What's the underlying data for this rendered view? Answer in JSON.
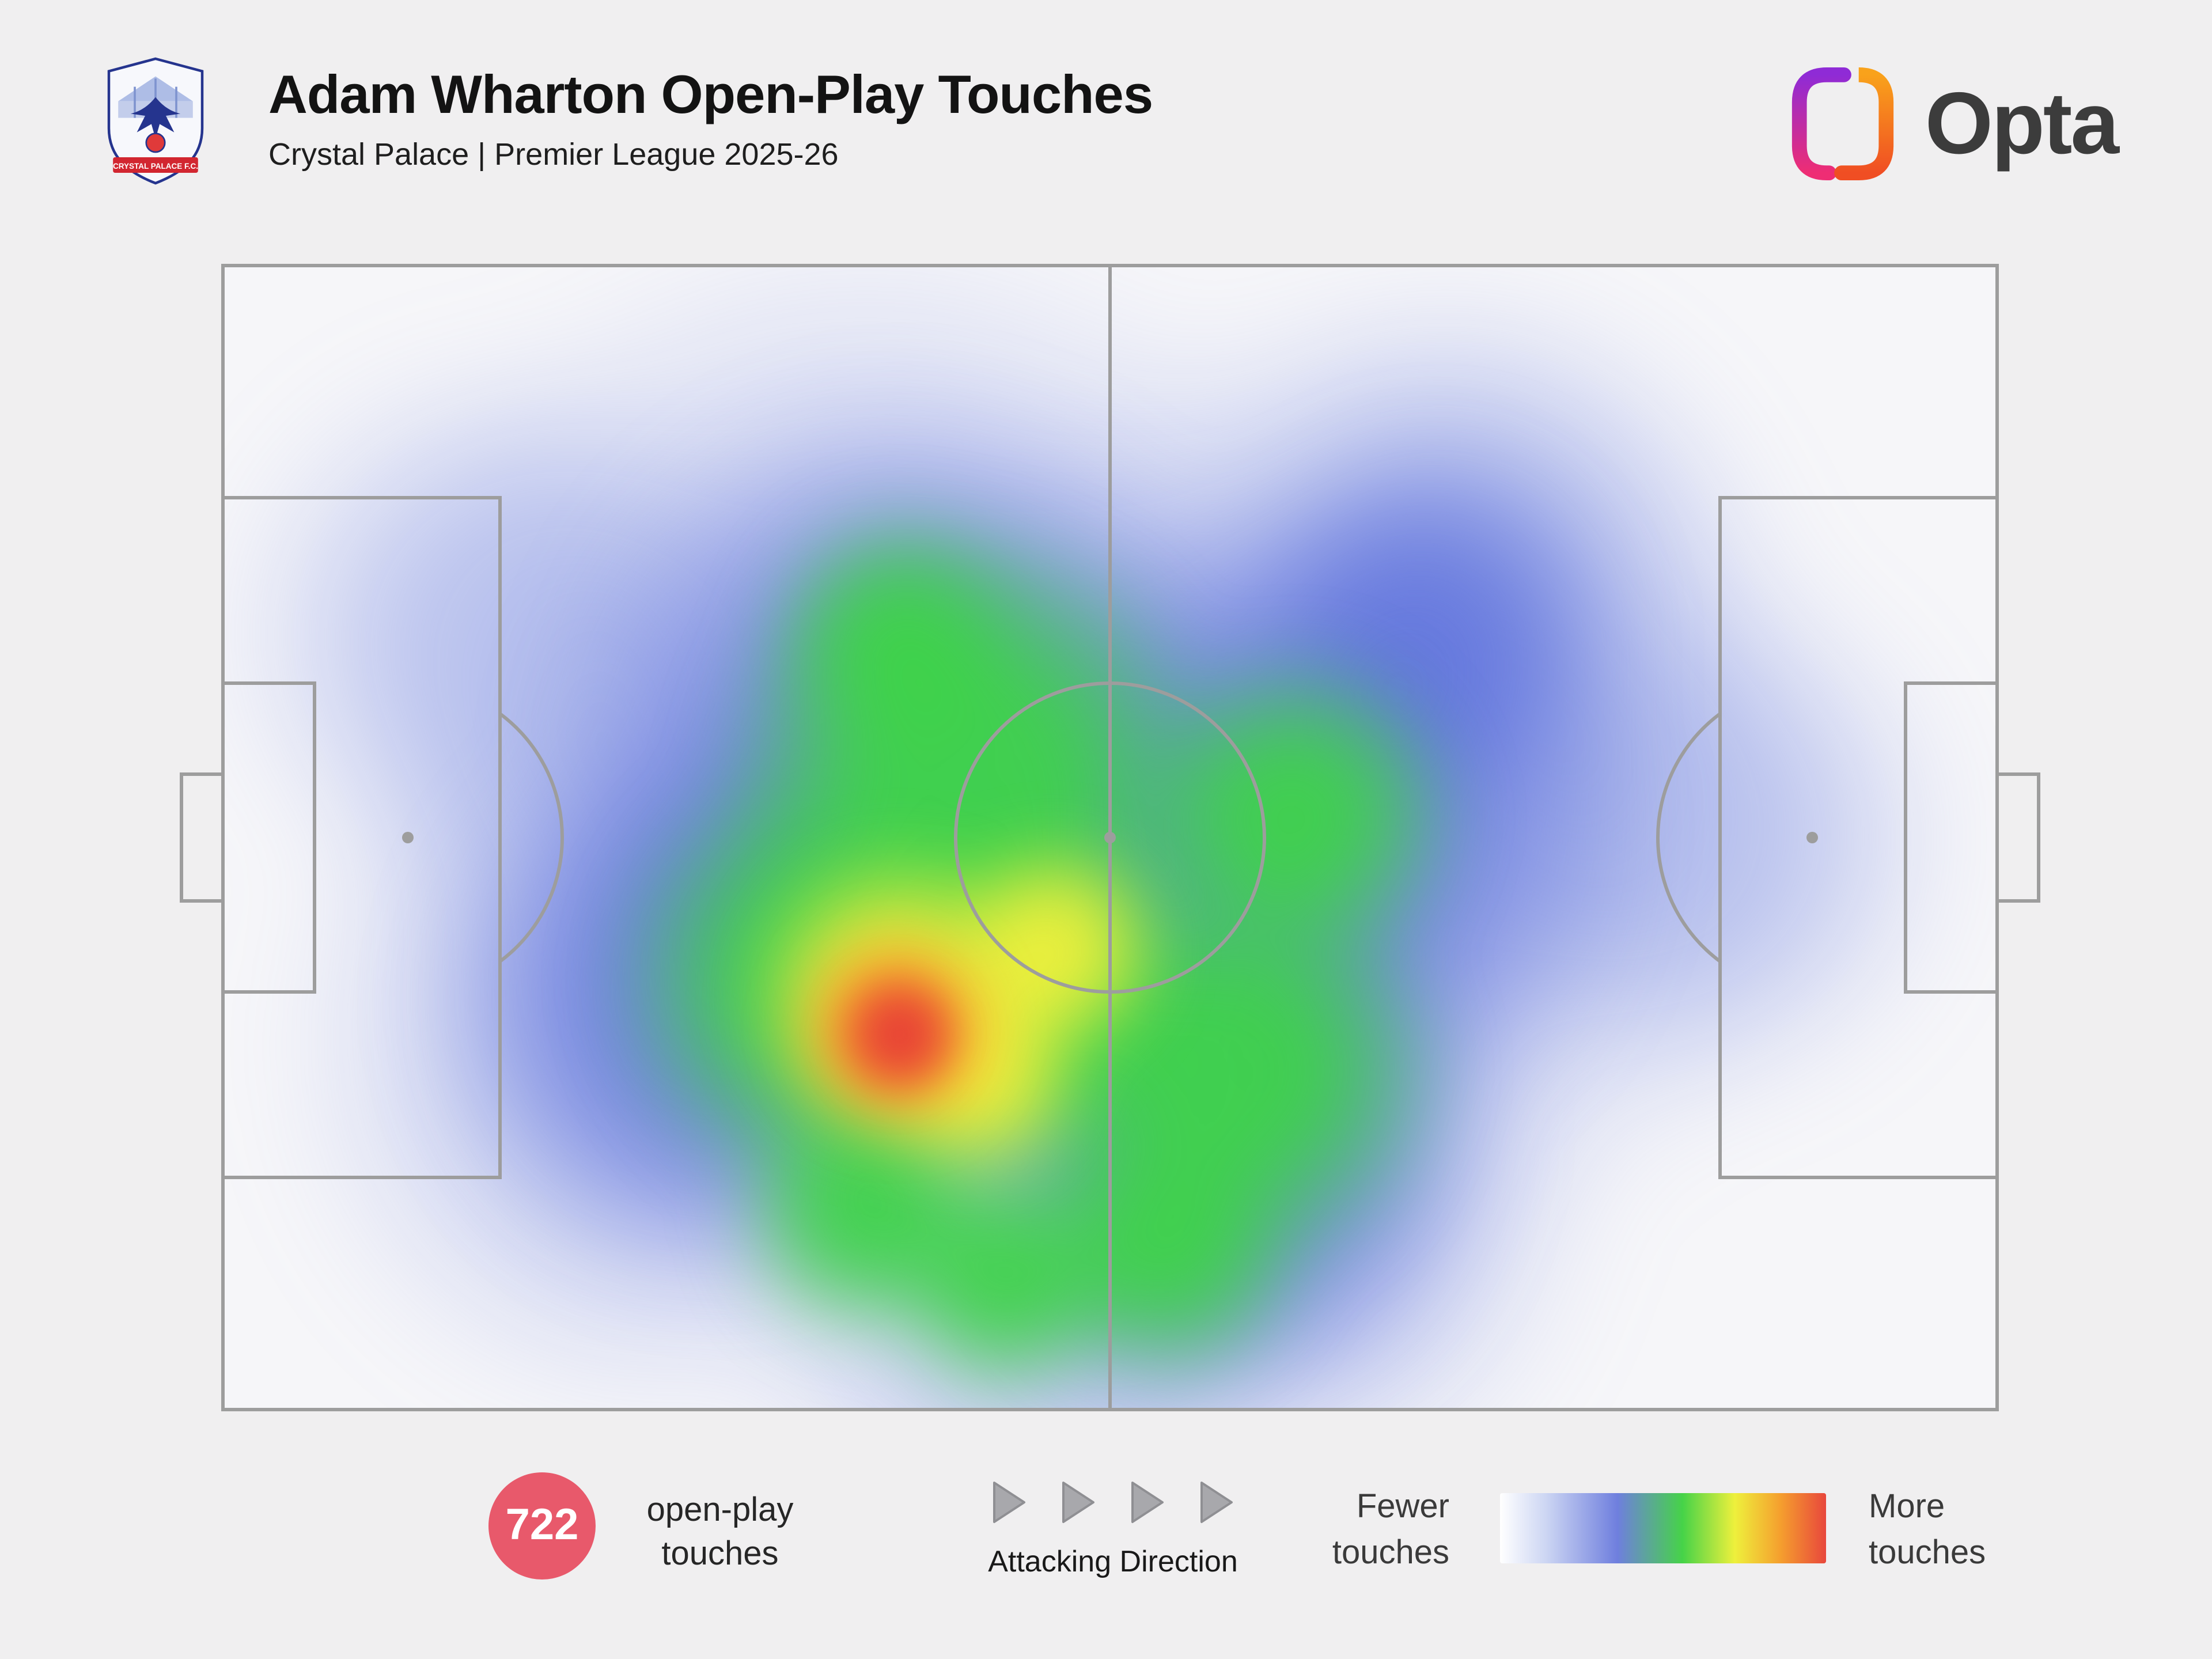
{
  "header": {
    "title": "Adam Wharton Open-Play Touches",
    "subtitle": "Crystal Palace | Premier League 2025-26",
    "brand": "Opta",
    "crest_banner": "CRYSTAL PALACE F.C."
  },
  "footer": {
    "touches_value": "722",
    "touches_label_line1": "open-play",
    "touches_label_line2": "touches",
    "attacking_direction": "Attacking Direction",
    "legend_low_line1": "Fewer",
    "legend_low_line2": "touches",
    "legend_high_line1": "More",
    "legend_high_line2": "touches"
  },
  "colors": {
    "background": "#f0eff0",
    "pitch_line": "#9d9d9d",
    "badge_red": "#e8596b",
    "opta_text": "#3c3c3c",
    "opta_gradient_left_top": "#8f2bd6",
    "opta_gradient_left_bottom": "#ee2d74",
    "opta_gradient_right_top": "#f9a21b",
    "opta_gradient_right_bottom": "#f04e23"
  },
  "chart_data": {
    "type": "heatmap",
    "title": "Adam Wharton Open-Play Touches",
    "subtitle": "Crystal Palace | Premier League 2025-26",
    "player": "Adam Wharton",
    "team": "Crystal Palace",
    "competition": "Premier League 2025-26",
    "total_open_play_touches": 722,
    "attacking_direction": "left-to-right",
    "legend": {
      "low_label": "Fewer touches",
      "high_label": "More touches"
    },
    "peak_zone": {
      "x_pct": 38,
      "y_pct": 67,
      "description": "deep left-centre midfield channel, just outside and left of the centre circle, own half"
    },
    "colormap": [
      {
        "color": "#ffffff",
        "pos": 0
      },
      {
        "color": "#cdd6f3",
        "pos": 14
      },
      {
        "color": "#6f7fde",
        "pos": 36
      },
      {
        "color": "#46d348",
        "pos": 56
      },
      {
        "color": "#eef03c",
        "pos": 72
      },
      {
        "color": "#f59f2e",
        "pos": 86
      },
      {
        "color": "#e8473c",
        "pos": 100
      }
    ],
    "layers": [
      {
        "name": "blue-soft",
        "blur": 45,
        "color": "rgba(108,128,224,0.35)"
      },
      {
        "name": "blue",
        "blur": 38,
        "color": "rgba(92,112,220,0.75)"
      },
      {
        "name": "green",
        "blur": 30,
        "color": "rgba(62,211,72,0.95)"
      },
      {
        "name": "yellow",
        "blur": 26,
        "color": "rgba(243,240,60,0.95)"
      },
      {
        "name": "orange",
        "blur": 22,
        "color": "rgba(246,150,44,0.95)"
      },
      {
        "name": "red",
        "blur": 16,
        "color": "rgba(232,64,54,0.97)"
      }
    ],
    "blobs": [
      {
        "layer": "blue-soft",
        "x": 36.3,
        "y": 43.2,
        "r": 470
      },
      {
        "layer": "blue-soft",
        "x": 64.8,
        "y": 45.2,
        "r": 420
      },
      {
        "layer": "blue-soft",
        "x": 24.6,
        "y": 68.3,
        "r": 330
      },
      {
        "layer": "blue-soft",
        "x": 58.3,
        "y": 80.3,
        "r": 300
      },
      {
        "layer": "blue-soft",
        "x": 70.0,
        "y": 28.1,
        "r": 260
      },
      {
        "layer": "blue-soft",
        "x": 83.0,
        "y": 50.2,
        "r": 230
      },
      {
        "layer": "blue-soft",
        "x": 15.6,
        "y": 32.1,
        "r": 240
      },
      {
        "layer": "blue-soft",
        "x": 45.4,
        "y": 90.4,
        "r": 250
      },
      {
        "layer": "blue",
        "x": 38.9,
        "y": 43.2,
        "r": 320
      },
      {
        "layer": "blue",
        "x": 61.6,
        "y": 49.2,
        "r": 290
      },
      {
        "layer": "blue",
        "x": 27.9,
        "y": 64.3,
        "r": 250
      },
      {
        "layer": "blue",
        "x": 57.0,
        "y": 77.3,
        "r": 230
      },
      {
        "layer": "blue",
        "x": 68.1,
        "y": 32.1,
        "r": 170
      },
      {
        "layer": "green",
        "x": 42.1,
        "y": 45.2,
        "r": 230
      },
      {
        "layer": "green",
        "x": 34.3,
        "y": 62.2,
        "r": 200
      },
      {
        "layer": "green",
        "x": 45.4,
        "y": 64.3,
        "r": 180
      },
      {
        "layer": "green",
        "x": 57.0,
        "y": 70.3,
        "r": 190
      },
      {
        "layer": "green",
        "x": 60.3,
        "y": 48.2,
        "r": 150
      },
      {
        "layer": "green",
        "x": 38.2,
        "y": 33.1,
        "r": 120
      },
      {
        "layer": "green",
        "x": 53.1,
        "y": 85.3,
        "r": 130
      },
      {
        "layer": "green",
        "x": 36.3,
        "y": 82.3,
        "r": 120
      },
      {
        "layer": "green",
        "x": 44.1,
        "y": 88.4,
        "r": 110
      },
      {
        "layer": "yellow",
        "x": 38.2,
        "y": 64.3,
        "r": 140
      },
      {
        "layer": "yellow",
        "x": 46.7,
        "y": 59.7,
        "r": 100
      },
      {
        "layer": "yellow",
        "x": 42.4,
        "y": 70.3,
        "r": 100
      },
      {
        "layer": "orange",
        "x": 37.9,
        "y": 66.8,
        "r": 95
      },
      {
        "layer": "red",
        "x": 38.2,
        "y": 67.2,
        "r": 58
      }
    ]
  }
}
